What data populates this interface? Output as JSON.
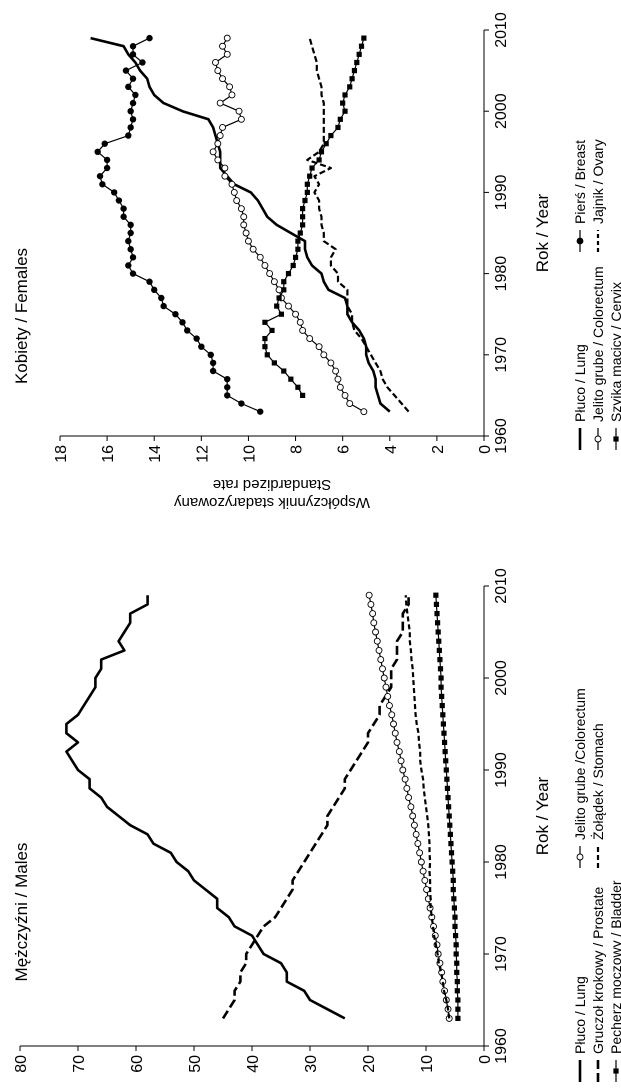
{
  "chart_data": [
    {
      "type": "line",
      "panel_title": "Kobiety / Females",
      "xlabel": "Rok / Year",
      "ylabel_line1": "Współczynnik stadaryzowany",
      "ylabel_line2": "Standardized rate",
      "xlim": [
        1960,
        2010
      ],
      "ylim": [
        0,
        18
      ],
      "xticks": [
        "1960",
        "1970",
        "1980",
        "1990",
        "2000",
        "2010"
      ],
      "yticks": [
        "0",
        "2",
        "4",
        "6",
        "8",
        "10",
        "12",
        "14",
        "16",
        "18"
      ],
      "grid": false,
      "legend": "bottom",
      "series": [
        {
          "name": "Płuco / Lung",
          "style": "solid-thick",
          "x": [
            1963,
            1964,
            1965,
            1966,
            1967,
            1968,
            1969,
            1970,
            1971,
            1972,
            1973,
            1974,
            1975,
            1976,
            1977,
            1978,
            1979,
            1980,
            1981,
            1982,
            1983,
            1984,
            1985,
            1986,
            1987,
            1988,
            1989,
            1990,
            1991,
            1992,
            1993,
            1994,
            1995,
            1996,
            1997,
            1998,
            1999,
            2000,
            2001,
            2002,
            2003,
            2004,
            2005,
            2006,
            2007,
            2008,
            2009
          ],
          "y": [
            4.0,
            4.4,
            4.5,
            4.6,
            4.6,
            4.7,
            4.9,
            5.0,
            5.0,
            5.1,
            5.3,
            5.6,
            5.8,
            5.8,
            5.9,
            6.6,
            6.8,
            6.9,
            7.3,
            7.5,
            7.6,
            7.6,
            8.2,
            8.8,
            9.2,
            9.4,
            9.6,
            9.9,
            10.6,
            10.9,
            11.2,
            11.2,
            11.2,
            11.3,
            11.4,
            11.5,
            11.7,
            12.8,
            13.6,
            14.0,
            14.2,
            14.3,
            14.6,
            14.8,
            15.1,
            15.3,
            16.7
          ]
        },
        {
          "name": "Pierś / Breast",
          "style": "solid-filled-circle",
          "x": [
            1963,
            1964,
            1965,
            1966,
            1967,
            1968,
            1969,
            1970,
            1971,
            1972,
            1973,
            1974,
            1975,
            1976,
            1977,
            1978,
            1979,
            1980,
            1981,
            1982,
            1983,
            1984,
            1985,
            1986,
            1987,
            1988,
            1989,
            1990,
            1991,
            1992,
            1993,
            1994,
            1995,
            1996,
            1997,
            1998,
            1999,
            2000,
            2001,
            2002,
            2003,
            2004,
            2005,
            2006,
            2007,
            2008,
            2009
          ],
          "y": [
            9.5,
            10.3,
            10.9,
            10.9,
            10.9,
            11.5,
            11.5,
            11.6,
            12.0,
            12.2,
            12.6,
            12.8,
            13.1,
            13.6,
            13.7,
            14.0,
            14.2,
            14.9,
            15.1,
            14.9,
            15.0,
            15.1,
            15.0,
            15.0,
            15.3,
            15.3,
            15.5,
            15.7,
            16.2,
            16.3,
            16.0,
            16.0,
            16.4,
            16.1,
            15.1,
            15.0,
            14.9,
            15.0,
            14.9,
            14.8,
            15.1,
            14.9,
            15.2,
            14.5,
            14.9,
            14.9,
            14.2
          ]
        },
        {
          "name": "Jelito grube / Colorectum",
          "style": "solid-open-circle",
          "x": [
            1963,
            1964,
            1965,
            1966,
            1967,
            1968,
            1969,
            1970,
            1971,
            1972,
            1973,
            1974,
            1975,
            1976,
            1977,
            1978,
            1979,
            1980,
            1981,
            1982,
            1983,
            1984,
            1985,
            1986,
            1987,
            1988,
            1989,
            1990,
            1991,
            1992,
            1993,
            1994,
            1995,
            1996,
            1997,
            1998,
            1999,
            2000,
            2001,
            2002,
            2003,
            2004,
            2005,
            2006,
            2007,
            2008,
            2009
          ],
          "y": [
            5.1,
            5.7,
            5.9,
            6.1,
            6.2,
            6.3,
            6.5,
            6.8,
            7.0,
            7.4,
            7.7,
            7.8,
            8.0,
            8.3,
            8.6,
            8.7,
            8.9,
            9.1,
            9.3,
            9.5,
            9.8,
            10.0,
            10.1,
            10.2,
            10.2,
            10.3,
            10.5,
            10.6,
            10.7,
            11.0,
            11.0,
            11.3,
            11.5,
            11.3,
            11.2,
            11.1,
            10.3,
            10.4,
            11.2,
            10.7,
            10.8,
            11.1,
            11.3,
            11.4,
            10.9,
            11.1,
            10.9
          ]
        },
        {
          "name": "Jajnik / Ovary",
          "style": "dashed",
          "x": [
            1963,
            1964,
            1965,
            1966,
            1967,
            1968,
            1969,
            1970,
            1971,
            1972,
            1973,
            1974,
            1975,
            1976,
            1977,
            1978,
            1979,
            1980,
            1981,
            1982,
            1983,
            1984,
            1985,
            1986,
            1987,
            1988,
            1989,
            1990,
            1991,
            1992,
            1993,
            1994,
            1995,
            1996,
            1997,
            1998,
            1999,
            2000,
            2001,
            2002,
            2003,
            2004,
            2005,
            2006,
            2007,
            2008,
            2009
          ],
          "y": [
            3.2,
            3.5,
            3.8,
            4.1,
            4.3,
            4.4,
            4.6,
            4.8,
            5.0,
            5.2,
            5.5,
            5.6,
            5.6,
            5.8,
            5.8,
            5.8,
            6.2,
            6.2,
            6.5,
            6.5,
            6.3,
            6.8,
            6.8,
            6.9,
            6.9,
            7.0,
            7.0,
            7.2,
            7.0,
            7.2,
            6.5,
            7.5,
            7.0,
            6.8,
            6.8,
            6.8,
            6.8,
            6.8,
            6.8,
            6.9,
            6.9,
            7.0,
            7.1,
            7.1,
            7.2,
            7.3,
            7.4
          ]
        },
        {
          "name": "Szyjka macicy / Cervix",
          "style": "solid-filled-square",
          "x": [
            1965,
            1966,
            1967,
            1968,
            1969,
            1970,
            1971,
            1972,
            1973,
            1974,
            1975,
            1976,
            1977,
            1978,
            1979,
            1980,
            1981,
            1982,
            1983,
            1984,
            1985,
            1986,
            1987,
            1988,
            1989,
            1990,
            1991,
            1992,
            1993,
            1994,
            1995,
            1996,
            1997,
            1998,
            1999,
            2000,
            2001,
            2002,
            2003,
            2004,
            2005,
            2006,
            2007,
            2008,
            2009
          ],
          "y": [
            7.7,
            7.9,
            8.2,
            8.5,
            8.9,
            9.2,
            9.3,
            9.3,
            9.0,
            9.3,
            8.6,
            8.8,
            8.7,
            8.5,
            8.5,
            8.3,
            8.1,
            8.0,
            7.9,
            7.9,
            7.8,
            7.7,
            7.7,
            7.7,
            7.6,
            7.5,
            7.5,
            7.4,
            7.3,
            7.0,
            6.9,
            6.7,
            6.5,
            6.2,
            6.1,
            5.9,
            6.0,
            5.9,
            5.7,
            5.6,
            5.5,
            5.4,
            5.3,
            5.2,
            5.1
          ]
        }
      ]
    },
    {
      "type": "line",
      "panel_title": "Mężczyźni / Males",
      "xlabel": "Rok / Year",
      "ylabel_line1": "Współczynnik stadaryzowany",
      "ylabel_line2": "Standardized rate",
      "xlim": [
        1960,
        2010
      ],
      "ylim": [
        0,
        80
      ],
      "xticks": [
        "1960",
        "1970",
        "1980",
        "1990",
        "2000",
        "2010"
      ],
      "yticks": [
        "0",
        "10",
        "20",
        "30",
        "40",
        "50",
        "60",
        "70",
        "80"
      ],
      "grid": false,
      "legend": "bottom",
      "series": [
        {
          "name": "Płuco / Lung",
          "style": "solid-thick",
          "x": [
            1963,
            1964,
            1965,
            1966,
            1967,
            1968,
            1969,
            1970,
            1971,
            1972,
            1973,
            1974,
            1975,
            1976,
            1977,
            1978,
            1979,
            1980,
            1981,
            1982,
            1983,
            1984,
            1985,
            1986,
            1987,
            1988,
            1989,
            1990,
            1991,
            1992,
            1993,
            1994,
            1995,
            1996,
            1997,
            1998,
            1999,
            2000,
            2001,
            2002,
            2003,
            2004,
            2005,
            2006,
            2007,
            2008,
            2009
          ],
          "y": [
            24,
            27,
            30,
            31,
            34,
            34,
            35,
            38,
            39,
            40,
            43,
            44,
            46,
            46,
            48,
            50,
            51,
            53,
            54,
            57,
            58,
            61,
            63,
            65,
            66,
            68,
            68,
            70,
            71,
            72,
            70,
            72,
            72,
            70,
            69,
            68,
            67,
            67,
            66,
            66,
            62,
            63,
            62,
            61,
            61,
            58,
            58
          ]
        },
        {
          "name": "Gruczoł krokowy / Prostate",
          "style": "dashed-thick",
          "x": [
            1963,
            1964,
            1965,
            1966,
            1967,
            1968,
            1969,
            1970,
            1971,
            1972,
            1973,
            1974,
            1975,
            1976,
            1977,
            1978,
            1979,
            1980,
            1981,
            1982,
            1983,
            1984,
            1985,
            1986,
            1987,
            1988,
            1989,
            1990,
            1991,
            1992,
            1993,
            1994,
            1995,
            1996,
            1997,
            1998,
            1999,
            2000,
            2001,
            2002,
            2003,
            2004,
            2005,
            2006,
            2007,
            2008,
            2009
          ],
          "y": [
            45,
            44,
            43,
            43,
            42,
            42,
            41,
            41,
            40,
            39,
            38,
            36,
            35,
            34,
            33,
            33,
            32,
            31,
            30,
            29,
            28,
            27,
            27,
            26,
            25,
            24,
            24,
            23,
            22,
            21,
            20,
            20,
            19,
            18,
            18,
            17,
            16,
            16,
            16,
            15,
            15,
            15,
            14,
            14,
            14,
            13,
            13
          ]
        },
        {
          "name": "Jelito grube /Colorectum",
          "style": "solid-open-circle",
          "x": [
            1963,
            1964,
            1965,
            1966,
            1967,
            1968,
            1969,
            1970,
            1971,
            1972,
            1973,
            1974,
            1975,
            1976,
            1977,
            1978,
            1979,
            1980,
            1981,
            1982,
            1983,
            1984,
            1985,
            1986,
            1987,
            1988,
            1989,
            1990,
            1991,
            1992,
            1993,
            1994,
            1995,
            1996,
            1997,
            1998,
            1999,
            2000,
            2001,
            2002,
            2003,
            2004,
            2005,
            2006,
            2007,
            2008,
            2009
          ],
          "y": [
            6,
            6.2,
            6.5,
            6.8,
            7.1,
            7.3,
            7.6,
            7.9,
            8.1,
            8.4,
            8.7,
            9,
            9.3,
            9.6,
            9.9,
            10.2,
            10.5,
            10.8,
            11.1,
            11.4,
            11.7,
            12,
            12.3,
            12.6,
            13,
            13.3,
            13.6,
            14,
            14.3,
            14.6,
            15,
            15.3,
            15.6,
            15.9,
            16.3,
            16.6,
            16.9,
            17.2,
            17.5,
            17.8,
            18.1,
            18.4,
            18.7,
            19,
            19.2,
            19.5,
            19.8
          ]
        },
        {
          "name": "Żołądek / Stomach",
          "style": "dashed-short",
          "x": [
            1963,
            1964,
            1965,
            1966,
            1967,
            1968,
            1969,
            1970,
            1971,
            1972,
            1973,
            1974,
            1975,
            1976,
            1977,
            1978,
            1979,
            1980,
            1981,
            1982,
            1983,
            1984,
            1985,
            1986,
            1987,
            1988,
            1989,
            1990,
            1991,
            1992,
            1993,
            1994,
            1995,
            1996,
            1997,
            1998,
            1999,
            2000,
            2001,
            2002,
            2003,
            2004,
            2005,
            2006,
            2007,
            2008,
            2009
          ],
          "y": [
            6,
            6.2,
            6.5,
            6.9,
            7.1,
            7.4,
            7.8,
            8,
            8.3,
            8.6,
            8.8,
            9,
            9.2,
            9.2,
            9.3,
            9.3,
            9.4,
            9.3,
            9.4,
            9.4,
            9.5,
            9.6,
            9.8,
            10,
            10.2,
            10.4,
            10.5,
            10.8,
            11,
            11,
            11.2,
            11.3,
            11.6,
            11.8,
            11.9,
            12,
            12.1,
            12.2,
            12.3,
            12.5,
            12.6,
            12.8,
            12.8,
            13,
            13.2,
            13.4,
            13.5
          ]
        },
        {
          "name": "Pęcherz moczowy / Bladder",
          "style": "solid-filled-square",
          "x": [
            1963,
            1964,
            1965,
            1966,
            1967,
            1968,
            1969,
            1970,
            1971,
            1972,
            1973,
            1974,
            1975,
            1976,
            1977,
            1978,
            1979,
            1980,
            1981,
            1982,
            1983,
            1984,
            1985,
            1986,
            1987,
            1988,
            1989,
            1990,
            1991,
            1992,
            1993,
            1994,
            1995,
            1996,
            1997,
            1998,
            1999,
            2000,
            2001,
            2002,
            2003,
            2004,
            2005,
            2006,
            2007,
            2008,
            2009
          ],
          "y": [
            4.5,
            4.5,
            4.5,
            4.6,
            4.6,
            4.7,
            4.7,
            4.8,
            4.8,
            4.9,
            5,
            5,
            5.1,
            5.2,
            5.3,
            5.3,
            5.4,
            5.5,
            5.6,
            5.7,
            5.8,
            5.9,
            6,
            6.1,
            6.2,
            6.3,
            6.4,
            6.5,
            6.6,
            6.7,
            6.8,
            6.9,
            7,
            7.1,
            7.2,
            7.3,
            7.4,
            7.4,
            7.5,
            7.6,
            7.7,
            7.8,
            7.9,
            8,
            8.1,
            8.2,
            8.3
          ]
        }
      ]
    }
  ]
}
